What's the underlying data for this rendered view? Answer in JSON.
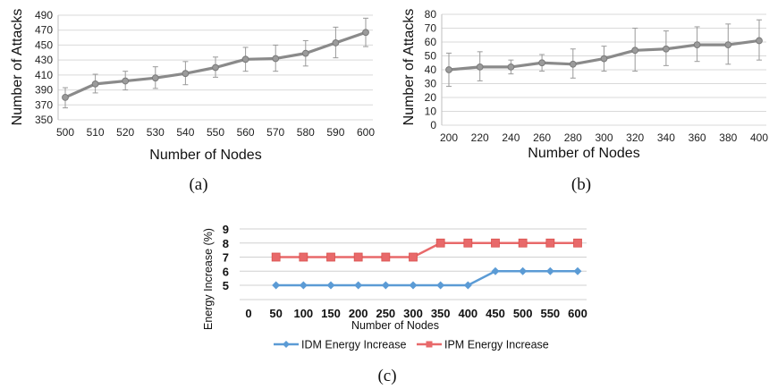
{
  "chart_data": [
    {
      "id": "a",
      "type": "line",
      "caption": "(a)",
      "xlabel": "Number of Nodes",
      "ylabel": "Number of Attacks",
      "x": [
        500,
        510,
        520,
        530,
        540,
        550,
        560,
        570,
        580,
        590,
        600
      ],
      "series": [
        {
          "values": [
            380,
            398,
            402,
            406,
            412,
            420,
            431,
            432,
            439,
            453,
            467
          ],
          "error_low": [
            366,
            386,
            390,
            392,
            397,
            407,
            415,
            415,
            422,
            433,
            448
          ],
          "error_high": [
            393,
            411,
            415,
            421,
            428,
            434,
            447,
            450,
            456,
            474,
            486
          ],
          "color": "#8a8a8a"
        }
      ],
      "ylim": [
        350,
        490
      ],
      "yticks": [
        350,
        370,
        390,
        410,
        430,
        450,
        470,
        490
      ],
      "grid": true,
      "legend": "none"
    },
    {
      "id": "b",
      "type": "line",
      "caption": "(b)",
      "xlabel": "Number of Nodes",
      "ylabel": "Number of Attacks",
      "x": [
        200,
        220,
        240,
        260,
        280,
        300,
        320,
        340,
        360,
        380,
        400
      ],
      "series": [
        {
          "values": [
            40,
            42,
            42,
            45,
            44,
            48,
            54,
            55,
            58,
            58,
            61
          ],
          "error_low": [
            28,
            32,
            37,
            39,
            34,
            39,
            39,
            43,
            46,
            44,
            47
          ],
          "error_high": [
            52,
            53,
            47,
            51,
            55,
            57,
            70,
            68,
            71,
            73,
            76
          ],
          "color": "#8a8a8a"
        }
      ],
      "ylim": [
        0,
        80
      ],
      "yticks": [
        0,
        10,
        20,
        30,
        40,
        50,
        60,
        70,
        80
      ],
      "grid": true,
      "legend": "none"
    },
    {
      "id": "c",
      "type": "line",
      "caption": "(c)",
      "xlabel": "Number of Nodes",
      "ylabel": "Energy Increase (%)",
      "xticks": [
        0,
        50,
        100,
        150,
        200,
        250,
        300,
        350,
        400,
        450,
        500,
        550,
        600
      ],
      "yticks": [
        5,
        6,
        7,
        8,
        9
      ],
      "ylim": [
        4.3,
        9
      ],
      "x": [
        50,
        100,
        150,
        200,
        250,
        300,
        350,
        400,
        450,
        500,
        550,
        600
      ],
      "series": [
        {
          "name": "IDM Energy Increase",
          "values": [
            5,
            5,
            5,
            5,
            5,
            5,
            5,
            5,
            6,
            6,
            6,
            6
          ],
          "color": "#5b9bd5",
          "marker": "diamond"
        },
        {
          "name": "IPM Energy Increase",
          "values": [
            7,
            7,
            7,
            7,
            7,
            7,
            8,
            8,
            8,
            8,
            8,
            8
          ],
          "color": "#e8696a",
          "marker": "square"
        }
      ],
      "grid": true,
      "legend": "bottom"
    }
  ]
}
